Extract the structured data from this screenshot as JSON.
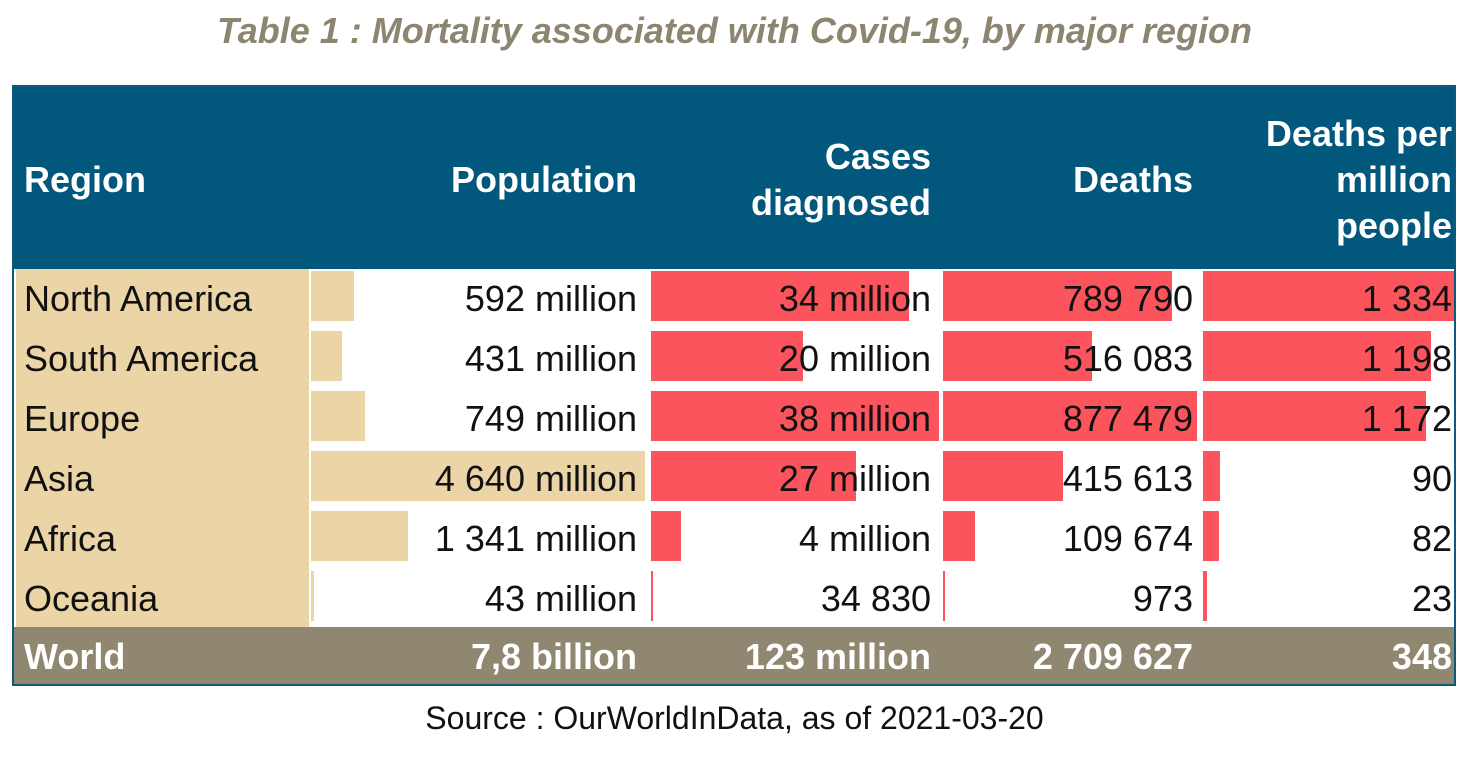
{
  "title": "Table 1 : Mortality associated with Covid-19, by major region",
  "source": "Source : OurWorldInData, as of 2021-03-20",
  "colors": {
    "header_bg": "#02577d",
    "region_bg": "#ebd4a6",
    "population_bar": "#ebd4a6",
    "red_bar": "#fc545c",
    "footer_bg": "#8f8770",
    "title_color": "#8c8570"
  },
  "chart_data": {
    "type": "table",
    "columns": [
      {
        "key": "region",
        "lines": [
          "Region"
        ]
      },
      {
        "key": "population",
        "lines": [
          "Population"
        ]
      },
      {
        "key": "cases",
        "lines": [
          "Cases",
          "diagnosed"
        ]
      },
      {
        "key": "deaths",
        "lines": [
          "Deaths"
        ]
      },
      {
        "key": "dpm",
        "lines": [
          "Deaths per",
          "million",
          "people"
        ]
      }
    ],
    "rows": [
      {
        "region": "North America",
        "population": "592 million",
        "cases": "34 million",
        "deaths": "789 790",
        "dpm": "1 334",
        "values": {
          "population": 592,
          "cases": 34,
          "deaths": 789790,
          "dpm": 1334
        }
      },
      {
        "region": "South America",
        "population": "431 million",
        "cases": "20 million",
        "deaths": "516 083",
        "dpm": "1 198",
        "values": {
          "population": 431,
          "cases": 20,
          "deaths": 516083,
          "dpm": 1198
        }
      },
      {
        "region": "Europe",
        "population": "749 million",
        "cases": "38 million",
        "deaths": "877 479",
        "dpm": "1 172",
        "values": {
          "population": 749,
          "cases": 38,
          "deaths": 877479,
          "dpm": 1172
        }
      },
      {
        "region": "Asia",
        "population": "4 640 million",
        "cases": "27 million",
        "deaths": "415 613",
        "dpm": "90",
        "values": {
          "population": 4640,
          "cases": 27,
          "deaths": 415613,
          "dpm": 90
        }
      },
      {
        "region": "Africa",
        "population": "1 341 million",
        "cases": "4 million",
        "deaths": "109 674",
        "dpm": "82",
        "values": {
          "population": 1341,
          "cases": 4,
          "deaths": 109674,
          "dpm": 82
        }
      },
      {
        "region": "Oceania",
        "population": "43 million",
        "cases": "34 830",
        "deaths": "973",
        "dpm": "23",
        "values": {
          "population": 43,
          "cases": 0.03483,
          "deaths": 973,
          "dpm": 23
        }
      }
    ],
    "total": {
      "region": "World",
      "population": "7,8 billion",
      "cases": "123 million",
      "deaths": "2 709 627",
      "dpm": "348"
    }
  }
}
